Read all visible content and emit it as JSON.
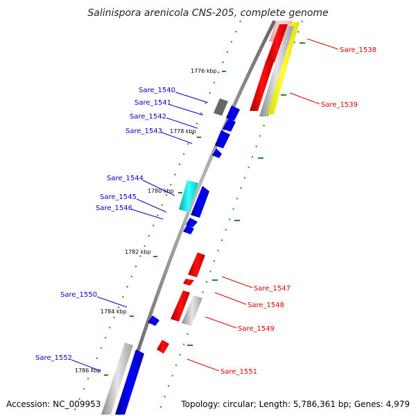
{
  "title": "Salinispora arenicola CNS-205, complete genome",
  "footer": {
    "accession": "Accession: NC_009953",
    "topology": "Topology: circular; Length: 5,786,361 bp; Genes: 4,979"
  },
  "scale_ticks": [
    "1776 kbp",
    "1778 kbp",
    "1780 kbp",
    "1782 kbp",
    "1784 kbp",
    "1786 kbp"
  ],
  "gene_labels": {
    "blue": [
      "Sare_1540",
      "Sare_1541",
      "Sare_1542",
      "Sare_1543",
      "Sare_1544",
      "Sare_1545",
      "Sare_1546",
      "Sare_1550",
      "Sare_1552"
    ],
    "red": [
      "Sare_1538",
      "Sare_1539",
      "Sare_1547",
      "Sare_1548",
      "Sare_1549",
      "Sare_1551"
    ]
  },
  "colors": {
    "forward_strand": "#0000ee",
    "reverse_strand": "#ee0000",
    "grey_gene": "#b0b0b0",
    "dark_grey_gene": "#666666",
    "cyan_gene": "#00e5e5",
    "yellow_gene": "#f0f000",
    "pink_gene": "#f5b0b0",
    "backbone": "#777777",
    "dots": "#1a8a1a"
  }
}
